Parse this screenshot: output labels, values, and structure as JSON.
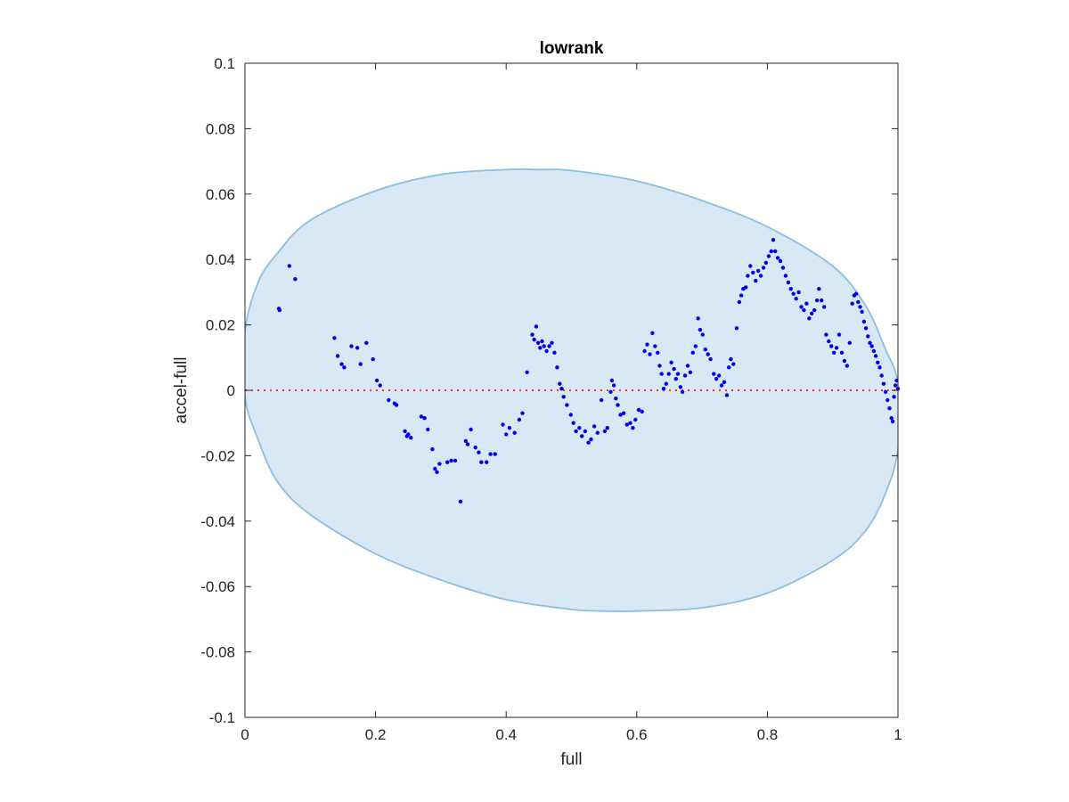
{
  "chart_data": {
    "type": "scatter",
    "title": "lowrank",
    "xlabel": "full",
    "ylabel": "accel-full",
    "xlim": [
      0,
      1
    ],
    "ylim": [
      -0.1,
      0.1
    ],
    "xticks": [
      "0",
      "0.2",
      "0.4",
      "0.6",
      "0.8",
      "1"
    ],
    "xtick_values": [
      0,
      0.2,
      0.4,
      0.6,
      0.8,
      1
    ],
    "yticks": [
      "-0.1",
      "-0.08",
      "-0.06",
      "-0.04",
      "-0.02",
      "0",
      "0.02",
      "0.04",
      "0.06",
      "0.08",
      "0.1"
    ],
    "ytick_values": [
      -0.1,
      -0.08,
      -0.06,
      -0.04,
      -0.02,
      0,
      0.02,
      0.04,
      0.06,
      0.08,
      0.1
    ],
    "grid": false,
    "reference_line": {
      "y": 0,
      "style": "dotted",
      "color": "#ff2a2a"
    },
    "colors": {
      "points": "#0000ee",
      "ellipse_fill": "#d8e8f4",
      "ellipse_edge": "#8cbfe0",
      "axes": "#262626"
    },
    "ellipse_outline": [
      [
        0.0,
        0.018
      ],
      [
        0.02,
        0.033
      ],
      [
        0.05,
        0.042
      ],
      [
        0.1,
        0.052
      ],
      [
        0.2,
        0.061
      ],
      [
        0.3,
        0.066
      ],
      [
        0.4,
        0.0675
      ],
      [
        0.45,
        0.0675
      ],
      [
        0.5,
        0.0672
      ],
      [
        0.6,
        0.064
      ],
      [
        0.7,
        0.058
      ],
      [
        0.8,
        0.05
      ],
      [
        0.9,
        0.038
      ],
      [
        0.95,
        0.026
      ],
      [
        0.98,
        0.013
      ],
      [
        1.0,
        0.002
      ],
      [
        1.0,
        -0.018
      ],
      [
        0.98,
        -0.032
      ],
      [
        0.95,
        -0.043
      ],
      [
        0.9,
        -0.052
      ],
      [
        0.8,
        -0.062
      ],
      [
        0.7,
        -0.0665
      ],
      [
        0.6,
        -0.0675
      ],
      [
        0.55,
        -0.0675
      ],
      [
        0.5,
        -0.067
      ],
      [
        0.4,
        -0.064
      ],
      [
        0.3,
        -0.058
      ],
      [
        0.2,
        -0.05
      ],
      [
        0.1,
        -0.038
      ],
      [
        0.05,
        -0.028
      ],
      [
        0.02,
        -0.015
      ],
      [
        0.0,
        -0.002
      ]
    ],
    "points": [
      [
        0.052,
        0.025
      ],
      [
        0.053,
        0.0245
      ],
      [
        0.068,
        0.038
      ],
      [
        0.077,
        0.034
      ],
      [
        0.137,
        0.016
      ],
      [
        0.142,
        0.0105
      ],
      [
        0.148,
        0.008
      ],
      [
        0.152,
        0.007
      ],
      [
        0.163,
        0.0135
      ],
      [
        0.172,
        0.013
      ],
      [
        0.177,
        0.008
      ],
      [
        0.186,
        0.0145
      ],
      [
        0.196,
        0.0095
      ],
      [
        0.202,
        0.003
      ],
      [
        0.207,
        0.0015
      ],
      [
        0.22,
        -0.003
      ],
      [
        0.229,
        -0.004
      ],
      [
        0.232,
        -0.0045
      ],
      [
        0.245,
        -0.0125
      ],
      [
        0.248,
        -0.014
      ],
      [
        0.25,
        -0.0135
      ],
      [
        0.254,
        -0.0145
      ],
      [
        0.27,
        -0.008
      ],
      [
        0.275,
        -0.0085
      ],
      [
        0.28,
        -0.012
      ],
      [
        0.287,
        -0.018
      ],
      [
        0.291,
        -0.024
      ],
      [
        0.294,
        -0.025
      ],
      [
        0.298,
        -0.0225
      ],
      [
        0.31,
        -0.022
      ],
      [
        0.316,
        -0.0215
      ],
      [
        0.322,
        -0.0215
      ],
      [
        0.33,
        -0.034
      ],
      [
        0.338,
        -0.0155
      ],
      [
        0.341,
        -0.0165
      ],
      [
        0.346,
        -0.012
      ],
      [
        0.353,
        -0.0175
      ],
      [
        0.358,
        -0.019
      ],
      [
        0.362,
        -0.022
      ],
      [
        0.37,
        -0.022
      ],
      [
        0.376,
        -0.0195
      ],
      [
        0.383,
        -0.0195
      ],
      [
        0.395,
        -0.0105
      ],
      [
        0.4,
        -0.0135
      ],
      [
        0.405,
        -0.0115
      ],
      [
        0.413,
        -0.013
      ],
      [
        0.42,
        -0.009
      ],
      [
        0.425,
        -0.007
      ],
      [
        0.432,
        0.0055
      ],
      [
        0.44,
        0.017
      ],
      [
        0.443,
        0.0155
      ],
      [
        0.446,
        0.0195
      ],
      [
        0.449,
        0.0145
      ],
      [
        0.452,
        0.013
      ],
      [
        0.455,
        0.015
      ],
      [
        0.458,
        0.0135
      ],
      [
        0.462,
        0.012
      ],
      [
        0.466,
        0.0135
      ],
      [
        0.47,
        0.0145
      ],
      [
        0.474,
        0.0115
      ],
      [
        0.478,
        0.007
      ],
      [
        0.482,
        0.002
      ],
      [
        0.485,
        0.0005
      ],
      [
        0.488,
        -0.002
      ],
      [
        0.493,
        -0.0045
      ],
      [
        0.499,
        -0.0075
      ],
      [
        0.503,
        -0.01
      ],
      [
        0.507,
        -0.0125
      ],
      [
        0.512,
        -0.0115
      ],
      [
        0.516,
        -0.014
      ],
      [
        0.521,
        -0.0125
      ],
      [
        0.526,
        -0.016
      ],
      [
        0.53,
        -0.015
      ],
      [
        0.535,
        -0.011
      ],
      [
        0.54,
        -0.013
      ],
      [
        0.546,
        -0.003
      ],
      [
        0.551,
        -0.0125
      ],
      [
        0.555,
        -0.0115
      ],
      [
        0.56,
        -0.0005
      ],
      [
        0.562,
        0.003
      ],
      [
        0.565,
        0.0015
      ],
      [
        0.568,
        -0.0025
      ],
      [
        0.571,
        -0.0045
      ],
      [
        0.575,
        -0.0075
      ],
      [
        0.58,
        -0.007
      ],
      [
        0.585,
        -0.0105
      ],
      [
        0.59,
        -0.01
      ],
      [
        0.594,
        -0.0115
      ],
      [
        0.598,
        -0.009
      ],
      [
        0.603,
        -0.006
      ],
      [
        0.608,
        -0.0065
      ],
      [
        0.612,
        0.012
      ],
      [
        0.616,
        0.014
      ],
      [
        0.62,
        0.011
      ],
      [
        0.624,
        0.0175
      ],
      [
        0.628,
        0.0135
      ],
      [
        0.632,
        0.0115
      ],
      [
        0.635,
        0.0075
      ],
      [
        0.638,
        0.005
      ],
      [
        0.641,
        0.0005
      ],
      [
        0.645,
        0.002
      ],
      [
        0.649,
        0.005
      ],
      [
        0.653,
        0.0085
      ],
      [
        0.657,
        0.0065
      ],
      [
        0.66,
        0.0035
      ],
      [
        0.663,
        0.005
      ],
      [
        0.667,
        0.001
      ],
      [
        0.67,
        -0.0005
      ],
      [
        0.674,
        0.0045
      ],
      [
        0.678,
        0.0075
      ],
      [
        0.682,
        0.0055
      ],
      [
        0.686,
        0.0115
      ],
      [
        0.69,
        0.0135
      ],
      [
        0.694,
        0.022
      ],
      [
        0.697,
        0.0185
      ],
      [
        0.701,
        0.017
      ],
      [
        0.705,
        0.0125
      ],
      [
        0.709,
        0.011
      ],
      [
        0.713,
        0.0095
      ],
      [
        0.718,
        0.005
      ],
      [
        0.722,
        0.0035
      ],
      [
        0.726,
        0.0045
      ],
      [
        0.73,
        0.0015
      ],
      [
        0.734,
        0.0025
      ],
      [
        0.738,
        -0.0015
      ],
      [
        0.741,
        0.007
      ],
      [
        0.744,
        0.0095
      ],
      [
        0.748,
        0.008
      ],
      [
        0.753,
        0.019
      ],
      [
        0.757,
        0.027
      ],
      [
        0.76,
        0.029
      ],
      [
        0.763,
        0.031
      ],
      [
        0.767,
        0.0315
      ],
      [
        0.77,
        0.035
      ],
      [
        0.774,
        0.038
      ],
      [
        0.778,
        0.036
      ],
      [
        0.782,
        0.0335
      ],
      [
        0.786,
        0.0365
      ],
      [
        0.79,
        0.035
      ],
      [
        0.794,
        0.0375
      ],
      [
        0.798,
        0.039
      ],
      [
        0.802,
        0.041
      ],
      [
        0.806,
        0.0425
      ],
      [
        0.809,
        0.046
      ],
      [
        0.812,
        0.0425
      ],
      [
        0.816,
        0.0405
      ],
      [
        0.82,
        0.0395
      ],
      [
        0.824,
        0.0375
      ],
      [
        0.828,
        0.035
      ],
      [
        0.832,
        0.033
      ],
      [
        0.836,
        0.031
      ],
      [
        0.84,
        0.0295
      ],
      [
        0.844,
        0.028
      ],
      [
        0.848,
        0.03
      ],
      [
        0.852,
        0.0255
      ],
      [
        0.856,
        0.0245
      ],
      [
        0.86,
        0.0265
      ],
      [
        0.864,
        0.022
      ],
      [
        0.868,
        0.0235
      ],
      [
        0.872,
        0.0245
      ],
      [
        0.876,
        0.0275
      ],
      [
        0.879,
        0.031
      ],
      [
        0.883,
        0.0275
      ],
      [
        0.887,
        0.0255
      ],
      [
        0.89,
        0.017
      ],
      [
        0.894,
        0.015
      ],
      [
        0.898,
        0.0135
      ],
      [
        0.902,
        0.0115
      ],
      [
        0.906,
        0.013
      ],
      [
        0.91,
        0.017
      ],
      [
        0.914,
        0.0115
      ],
      [
        0.918,
        0.009
      ],
      [
        0.922,
        0.0075
      ],
      [
        0.926,
        0.0145
      ],
      [
        0.93,
        0.0265
      ],
      [
        0.933,
        0.029
      ],
      [
        0.936,
        0.0295
      ],
      [
        0.939,
        0.027
      ],
      [
        0.942,
        0.0255
      ],
      [
        0.945,
        0.024
      ],
      [
        0.948,
        0.021
      ],
      [
        0.951,
        0.019
      ],
      [
        0.954,
        0.0165
      ],
      [
        0.957,
        0.0145
      ],
      [
        0.96,
        0.0135
      ],
      [
        0.963,
        0.012
      ],
      [
        0.966,
        0.0105
      ],
      [
        0.969,
        0.0085
      ],
      [
        0.972,
        0.007
      ],
      [
        0.975,
        0.0045
      ],
      [
        0.978,
        0.002
      ],
      [
        0.981,
        -0.0005
      ],
      [
        0.984,
        -0.003
      ],
      [
        0.987,
        -0.0055
      ],
      [
        0.99,
        -0.0085
      ],
      [
        0.992,
        -0.0095
      ],
      [
        0.994,
        -0.002
      ],
      [
        0.996,
        0.0015
      ],
      [
        0.998,
        0.003
      ],
      [
        1.0,
        0.0005
      ]
    ]
  }
}
